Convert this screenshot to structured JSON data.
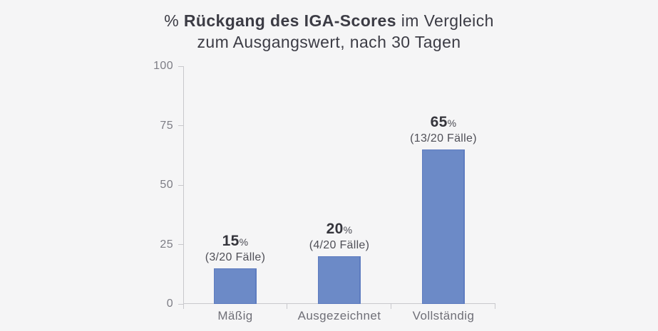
{
  "title": {
    "prefix": "% ",
    "bold": "Rückgang des IGA-Scores",
    "line1_rest": " im Vergleich",
    "line2": "zum Ausgangswert, nach 30 Tagen"
  },
  "chart_data": {
    "type": "bar",
    "title": "% Rückgang des IGA-Scores im Vergleich zum Ausgangswert, nach 30 Tagen",
    "categories": [
      "Mäßig",
      "Ausgezeichnet",
      "Vollständig"
    ],
    "values": [
      15,
      20,
      65
    ],
    "value_suffix": "%",
    "annotations": [
      "(3/20 Fälle)",
      "(4/20 Fälle)",
      "(13/20 Fälle)"
    ],
    "ylim": [
      0,
      100
    ],
    "yticks": [
      0,
      25,
      50,
      75,
      100
    ],
    "grid": false,
    "legend": null,
    "bar_color": "#6c8ac7",
    "bar_edge_color": "#5e7cc0",
    "axis_color": "#c8c8cc",
    "background_color": "#f5f5f6"
  }
}
